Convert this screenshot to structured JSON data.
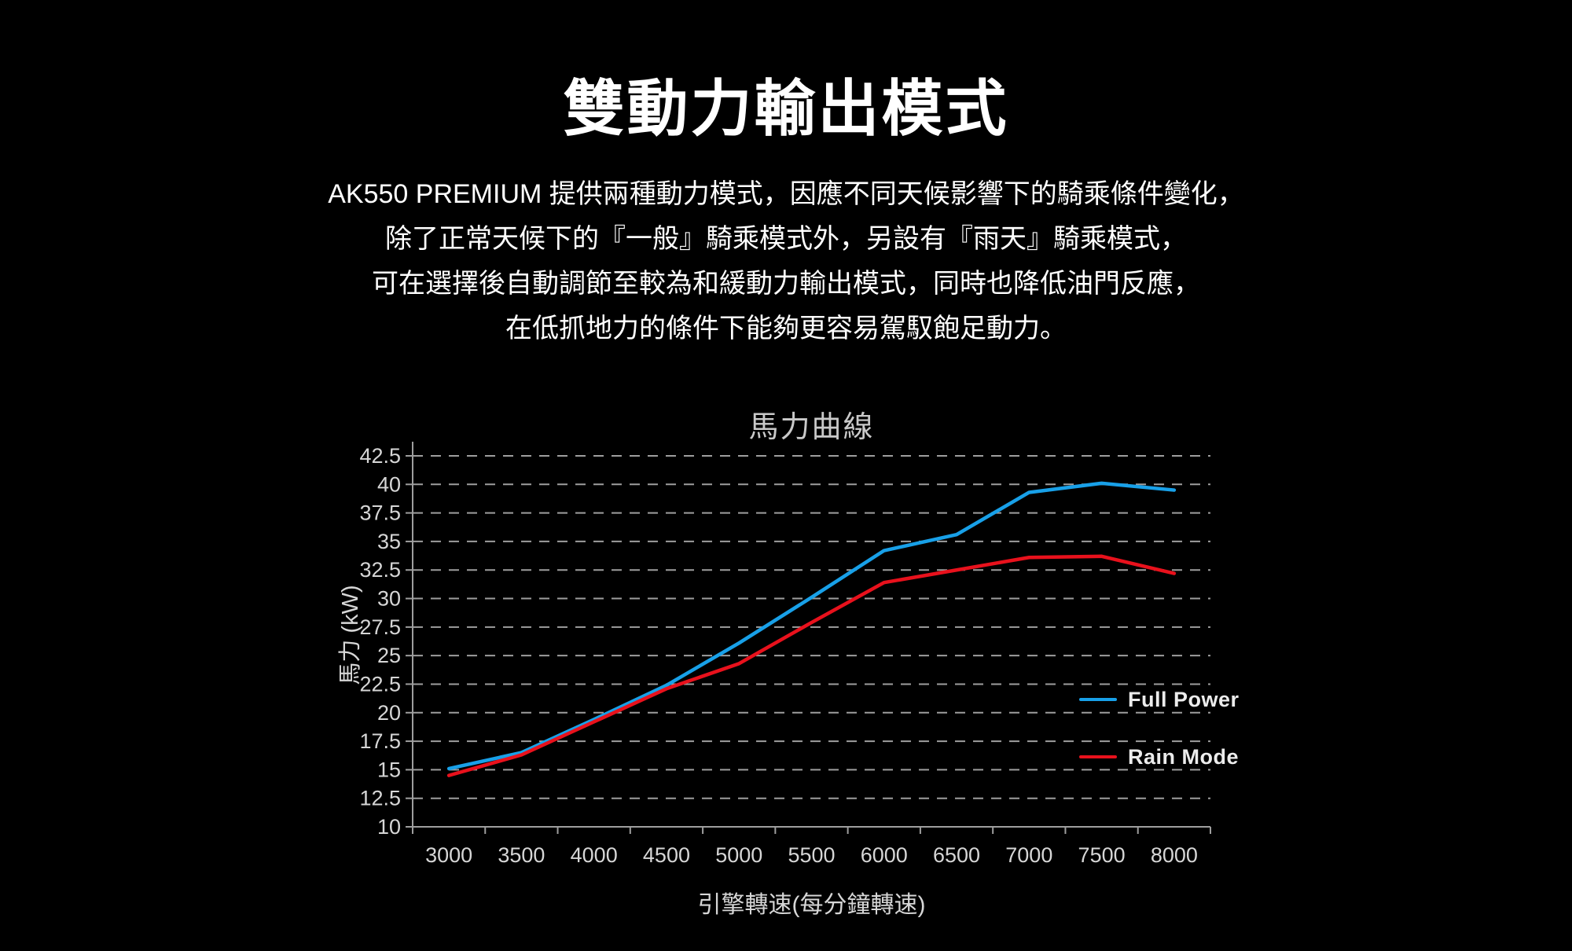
{
  "header": {
    "title": "雙動力輸出模式",
    "lines": [
      "AK550 PREMIUM 提供兩種動力模式，因應不同天候影響下的騎乘條件變化，",
      "除了正常天候下的『一般』騎乘模式外，另設有『雨天』騎乘模式，",
      "可在選擇後自動調節至較為和緩動力輸出模式，同時也降低油門反應，",
      "在低抓地力的條件下能夠更容易駕馭飽足動力。"
    ]
  },
  "chart": {
    "title": "馬力曲線",
    "ylabel": "馬力 (kW)",
    "xlabel": "引擎轉速(每分鐘轉速)"
  },
  "chart_data": {
    "type": "line",
    "title": "馬力曲線",
    "xlabel": "引擎轉速(每分鐘轉速)",
    "ylabel": "馬力 (kW)",
    "x": [
      3000,
      3500,
      4000,
      4500,
      5000,
      5500,
      6000,
      6500,
      7000,
      7500,
      8000
    ],
    "ytick_min": 10,
    "ytick_max": 42.5,
    "ytick_step": 2.5,
    "ylim": [
      10,
      44
    ],
    "grid": "horizontal-dashed",
    "legend_position": "inside-right",
    "colors": {
      "gridline": "#9e9e9e",
      "axis": "#9e9e9e",
      "tick_label": "#d6d6d6",
      "background": "#000000"
    },
    "series": [
      {
        "name": "Full Power",
        "color": "#18a0e8",
        "values": [
          15.1,
          16.5,
          19.4,
          22.4,
          26.1,
          30.1,
          34.2,
          35.6,
          39.3,
          40.1,
          39.5
        ]
      },
      {
        "name": "Rain Mode",
        "color": "#e8111c",
        "values": [
          14.5,
          16.3,
          19.2,
          22.1,
          24.3,
          27.9,
          31.4,
          32.5,
          33.6,
          33.7,
          32.2
        ]
      }
    ]
  }
}
